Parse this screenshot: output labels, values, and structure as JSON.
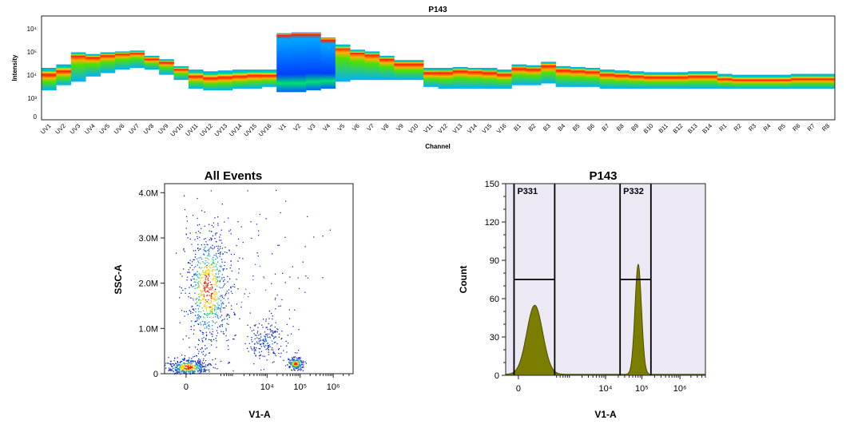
{
  "spectrum": {
    "title": "P143",
    "ylabel": "Intensity",
    "xlabel": "Channel",
    "yticks": [
      "10⁴",
      "10⁵",
      "10⁴",
      "10³",
      "0"
    ],
    "channels": [
      "UV1",
      "UV2",
      "UV3",
      "UV4",
      "UV5",
      "UV6",
      "UV7",
      "UV8",
      "UV9",
      "UV10",
      "UV11",
      "UV12",
      "UV13",
      "UV14",
      "UV15",
      "UV16",
      "V1",
      "V2",
      "V3",
      "V4",
      "V5",
      "V6",
      "V7",
      "V8",
      "V9",
      "V10",
      "V11",
      "V12",
      "V13",
      "V14",
      "V15",
      "V16",
      "B1",
      "B2",
      "B3",
      "B4",
      "B5",
      "B6",
      "B7",
      "B8",
      "B9",
      "B10",
      "B11",
      "B12",
      "B13",
      "B14",
      "R1",
      "R2",
      "R3",
      "R4",
      "R5",
      "R6",
      "R7",
      "R8"
    ]
  },
  "chart_data": [
    {
      "type": "heatmap",
      "title": "P143",
      "xlabel": "Channel",
      "ylabel": "Intensity",
      "ylim_log": [
        0,
        6
      ],
      "categories": [
        "UV1",
        "UV2",
        "UV3",
        "UV4",
        "UV5",
        "UV6",
        "UV7",
        "UV8",
        "UV9",
        "UV10",
        "UV11",
        "UV12",
        "UV13",
        "UV14",
        "UV15",
        "UV16",
        "V1",
        "V2",
        "V3",
        "V4",
        "V5",
        "V6",
        "V7",
        "V8",
        "V9",
        "V10",
        "V11",
        "V12",
        "V13",
        "V14",
        "V15",
        "V16",
        "B1",
        "B2",
        "B3",
        "B4",
        "B5",
        "B6",
        "B7",
        "B8",
        "B9",
        "B10",
        "B11",
        "B12",
        "B13",
        "B14",
        "R1",
        "R2",
        "R3",
        "R4",
        "R5",
        "R6",
        "R7",
        "R8"
      ],
      "band_log_center": [
        2.6,
        2.8,
        3.7,
        3.6,
        3.7,
        3.8,
        3.85,
        3.5,
        3.3,
        2.9,
        2.5,
        2.4,
        2.45,
        2.5,
        2.55,
        2.55,
        4.9,
        4.95,
        4.95,
        4.6,
        4.2,
        3.9,
        3.75,
        3.5,
        3.2,
        3.2,
        2.7,
        2.7,
        2.8,
        2.75,
        2.7,
        2.6,
        2.95,
        2.9,
        3.1,
        2.85,
        2.8,
        2.75,
        2.6,
        2.55,
        2.5,
        2.45,
        2.45,
        2.45,
        2.5,
        2.5,
        2.35,
        2.3,
        2.3,
        2.3,
        2.3,
        2.35,
        2.35,
        2.35
      ],
      "band_log_low": [
        1.7,
        2.0,
        2.2,
        2.5,
        2.7,
        2.9,
        3.0,
        2.9,
        2.6,
        2.3,
        1.8,
        1.7,
        1.7,
        1.8,
        1.8,
        1.9,
        1.6,
        1.6,
        1.7,
        1.8,
        2.2,
        2.3,
        2.3,
        2.3,
        2.3,
        2.3,
        1.9,
        1.8,
        1.8,
        1.8,
        1.8,
        1.8,
        2.0,
        2.0,
        2.1,
        1.9,
        1.9,
        1.9,
        1.8,
        1.8,
        1.8,
        1.8,
        1.8,
        1.8,
        1.8,
        1.8,
        1.8,
        1.8,
        1.8,
        1.8,
        1.8,
        1.8,
        1.8,
        1.8
      ],
      "band_log_high": [
        3.0,
        3.2,
        3.9,
        3.8,
        3.9,
        3.95,
        4.0,
        3.7,
        3.5,
        3.1,
        2.9,
        2.8,
        2.85,
        2.9,
        2.9,
        2.9,
        5.0,
        5.05,
        5.05,
        4.75,
        4.35,
        4.05,
        3.95,
        3.7,
        3.45,
        3.45,
        3.0,
        3.0,
        3.05,
        3.0,
        3.0,
        2.9,
        3.2,
        3.15,
        3.35,
        3.1,
        3.05,
        3.0,
        2.9,
        2.85,
        2.8,
        2.75,
        2.75,
        2.75,
        2.8,
        2.8,
        2.65,
        2.6,
        2.6,
        2.6,
        2.6,
        2.65,
        2.65,
        2.65
      ]
    },
    {
      "type": "scatter",
      "title": "All Events",
      "xlabel": "V1-A",
      "ylabel": "SSC-A",
      "xticks": [
        "0",
        "10⁴",
        "10⁵",
        "10⁶"
      ],
      "yticks": [
        "0",
        "1.0M",
        "2.0M",
        "3.0M",
        "4.0M"
      ],
      "ylim": [
        0,
        4200000
      ],
      "populations": [
        {
          "x_center_log": 2.2,
          "y_center": 1900000,
          "x_spread": 0.35,
          "y_spread": 700000,
          "weight": 0.45
        },
        {
          "x_center_log": 1.6,
          "y_center": 150000,
          "x_spread": 0.3,
          "y_spread": 90000,
          "weight": 0.25
        },
        {
          "x_center_log": 4.85,
          "y_center": 230000,
          "x_spread": 0.12,
          "y_spread": 70000,
          "weight": 0.12
        },
        {
          "x_center_log": 4.05,
          "y_center": 750000,
          "x_spread": 0.3,
          "y_spread": 220000,
          "weight": 0.1
        },
        {
          "x_center_log": 3.6,
          "y_center": 1900000,
          "x_spread": 0.9,
          "y_spread": 1100000,
          "weight": 0.08
        }
      ]
    },
    {
      "type": "area",
      "title": "P143",
      "xlabel": "V1-A",
      "ylabel": "Count",
      "xticks": [
        "0",
        "10⁴",
        "10⁵",
        "10⁶"
      ],
      "yticks": [
        "0",
        "30",
        "60",
        "90",
        "120",
        "150"
      ],
      "ylim": [
        0,
        150
      ],
      "peaks": [
        {
          "center_log": 2.0,
          "height": 54,
          "width": 0.22
        },
        {
          "center_log": 4.85,
          "height": 86,
          "width": 0.09
        }
      ],
      "gates": [
        {
          "label": "P331",
          "height": 75
        },
        {
          "label": "P332",
          "height": 75
        }
      ]
    }
  ],
  "colors": {
    "histogram_fill": "#7a7d00",
    "histogram_stroke": "#4d4f00",
    "plot_background": "#ece8f4",
    "gate_line": "#000000"
  }
}
